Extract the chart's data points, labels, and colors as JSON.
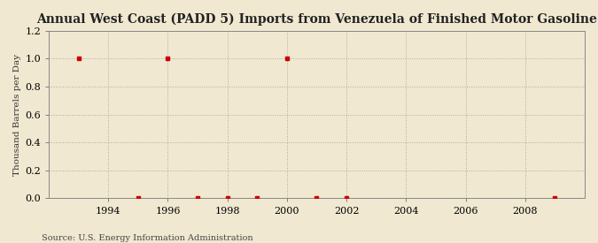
{
  "title": "Annual West Coast (PADD 5) Imports from Venezuela of Finished Motor Gasoline",
  "ylabel": "Thousand Barrels per Day",
  "source": "Source: U.S. Energy Information Administration",
  "background_color": "#f0e8d0",
  "plot_bg_color": "#f0e8d0",
  "xlim": [
    1992.0,
    2010.0
  ],
  "ylim": [
    0.0,
    1.2
  ],
  "yticks": [
    0.0,
    0.2,
    0.4,
    0.6,
    0.8,
    1.0,
    1.2
  ],
  "xticks": [
    1994,
    1996,
    1998,
    2000,
    2002,
    2004,
    2006,
    2008
  ],
  "x": [
    1993,
    1995,
    1996,
    1997,
    1998,
    1999,
    2000,
    2001,
    2002,
    2009
  ],
  "y": [
    1.0,
    0.0,
    1.0,
    0.0,
    0.0,
    0.0,
    1.0,
    0.0,
    0.0,
    0.0
  ],
  "marker_color": "#cc0000",
  "marker": "s",
  "marker_size": 3.5,
  "grid_color": "#aaaaaa",
  "grid_style": ":",
  "title_fontsize": 10,
  "ylabel_fontsize": 7.5,
  "tick_fontsize": 8,
  "source_fontsize": 7
}
